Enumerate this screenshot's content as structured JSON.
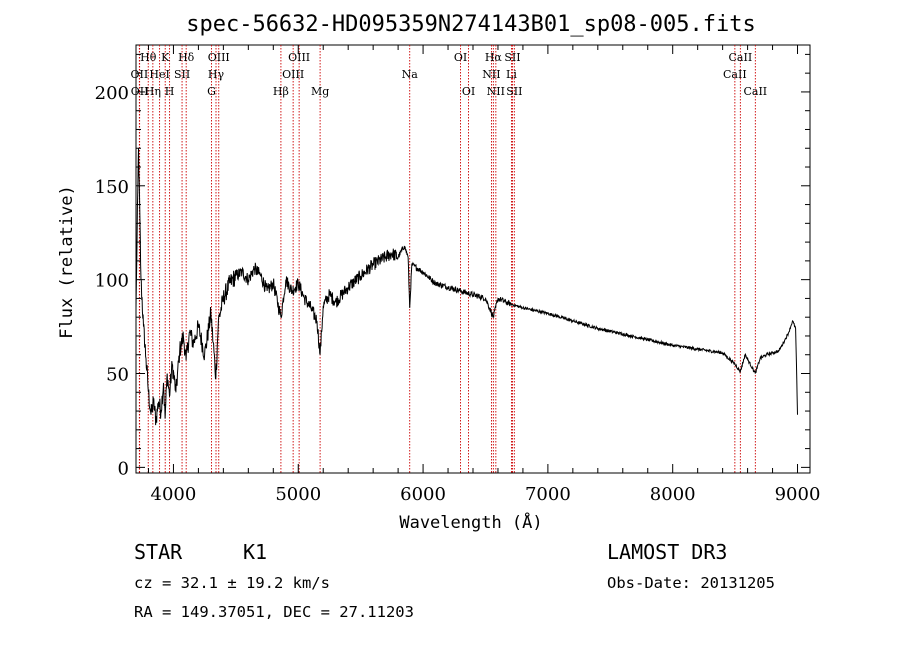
{
  "chart_data": {
    "type": "line",
    "title": "spec-56632-HD095359N274143B01_sp08-005.fits",
    "xlabel": "Wavelength (Å)",
    "ylabel": "Flux (relative)",
    "xlim": [
      3700,
      9100
    ],
    "ylim": [
      -3,
      225
    ],
    "x_ticks": [
      4000,
      5000,
      6000,
      7000,
      8000,
      9000
    ],
    "y_ticks": [
      0,
      50,
      100,
      150,
      200
    ],
    "series": [
      {
        "name": "spectrum",
        "color": "#000000",
        "x": [
          3700,
          3720,
          3740,
          3760,
          3780,
          3800,
          3820,
          3840,
          3860,
          3880,
          3900,
          3920,
          3933,
          3950,
          3968,
          3990,
          4020,
          4050,
          4080,
          4101,
          4130,
          4160,
          4200,
          4250,
          4300,
          4340,
          4360,
          4400,
          4450,
          4500,
          4550,
          4600,
          4650,
          4700,
          4750,
          4800,
          4861,
          4900,
          4950,
          5000,
          5050,
          5100,
          5150,
          5175,
          5200,
          5250,
          5300,
          5400,
          5500,
          5600,
          5700,
          5750,
          5800,
          5850,
          5880,
          5893,
          5910,
          6000,
          6100,
          6200,
          6300,
          6400,
          6500,
          6563,
          6600,
          6700,
          6800,
          7000,
          7200,
          7400,
          7600,
          7800,
          8000,
          8200,
          8400,
          8498,
          8542,
          8580,
          8662,
          8700,
          8750,
          8800,
          8850,
          8900,
          8930,
          8960,
          8985,
          9000
        ],
        "y": [
          85,
          170,
          100,
          75,
          58,
          40,
          28,
          35,
          25,
          35,
          30,
          45,
          26,
          50,
          38,
          55,
          40,
          62,
          70,
          57,
          72,
          66,
          75,
          60,
          82,
          48,
          78,
          90,
          98,
          102,
          104,
          100,
          106,
          102,
          94,
          98,
          80,
          100,
          94,
          98,
          90,
          85,
          78,
          60,
          86,
          92,
          88,
          96,
          102,
          108,
          112,
          114,
          112,
          118,
          112,
          85,
          108,
          104,
          98,
          96,
          94,
          92,
          90,
          80,
          90,
          87,
          85,
          82,
          78,
          74,
          71,
          68,
          65,
          63,
          61,
          55,
          51,
          60,
          50,
          58,
          60,
          61,
          62,
          68,
          72,
          78,
          74,
          28
        ]
      }
    ],
    "spectral_lines": [
      {
        "label": "Hθ",
        "x": 3798,
        "row": 1
      },
      {
        "label": "OII",
        "x": 3727,
        "row": 2
      },
      {
        "label": "OII",
        "x": 3729,
        "row": 3
      },
      {
        "label": "K",
        "x": 3934,
        "row": 1
      },
      {
        "label": "HeI",
        "x": 3889,
        "row": 2
      },
      {
        "label": "Hη",
        "x": 3835,
        "row": 3
      },
      {
        "label": "Hδ",
        "x": 4102,
        "row": 1
      },
      {
        "label": "SII",
        "x": 4069,
        "row": 2
      },
      {
        "label": "H",
        "x": 3969,
        "row": 3
      },
      {
        "label": "OIII",
        "x": 4363,
        "row": 1
      },
      {
        "label": "Hγ",
        "x": 4341,
        "row": 2
      },
      {
        "label": "G",
        "x": 4305,
        "row": 3
      },
      {
        "label": "OIII",
        "x": 5007,
        "row": 1
      },
      {
        "label": "OIII",
        "x": 4959,
        "row": 2
      },
      {
        "label": "Hβ",
        "x": 4861,
        "row": 3
      },
      {
        "label": "Mg",
        "x": 5175,
        "row": 3
      },
      {
        "label": "Na",
        "x": 5893,
        "row": 2
      },
      {
        "label": "OI",
        "x": 6300,
        "row": 1
      },
      {
        "label": "OI",
        "x": 6364,
        "row": 3
      },
      {
        "label": "Hα",
        "x": 6563,
        "row": 1
      },
      {
        "label": "NII",
        "x": 6548,
        "row": 2
      },
      {
        "label": "NII",
        "x": 6583,
        "row": 3
      },
      {
        "label": "SII",
        "x": 6716,
        "row": 1
      },
      {
        "label": "Li",
        "x": 6708,
        "row": 2
      },
      {
        "label": "SII",
        "x": 6731,
        "row": 3
      },
      {
        "label": "CaII",
        "x": 8542,
        "row": 1
      },
      {
        "label": "CaII",
        "x": 8498,
        "row": 2
      },
      {
        "label": "CaII",
        "x": 8662,
        "row": 3
      }
    ]
  },
  "footer": {
    "class_label": "STAR",
    "subclass": "K1",
    "survey": "LAMOST DR3",
    "redshift": "cz = 32.1 ± 19.2 km/s",
    "obs_date": "Obs-Date: 20131205",
    "coords": "RA = 149.37051, DEC =  27.11203"
  },
  "colors": {
    "line_marker": "#cc0000",
    "spectrum": "#000000",
    "axis": "#000000"
  }
}
